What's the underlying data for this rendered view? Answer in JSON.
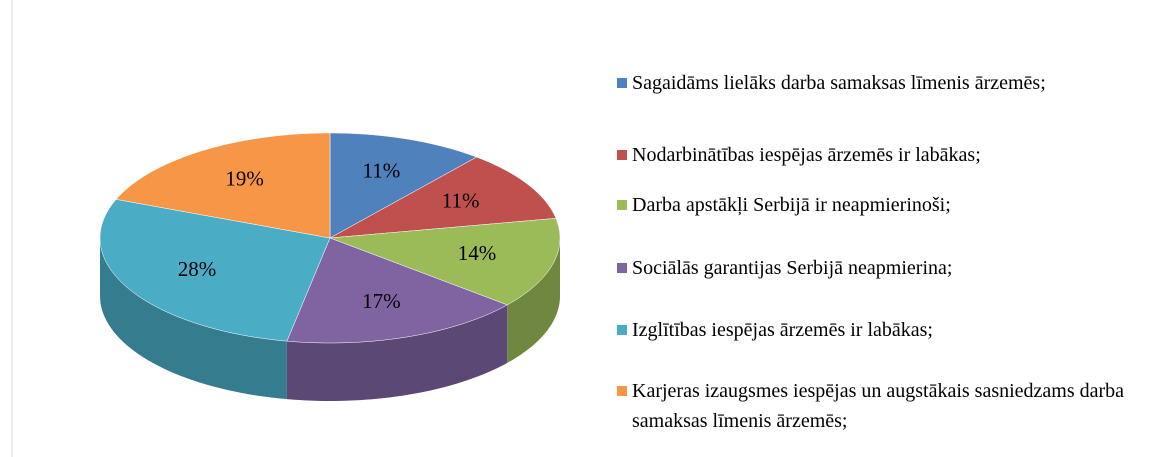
{
  "chart_data": {
    "type": "pie",
    "categories": [
      "Sagaidāms lielāks darba samaksas līmenis ārzemēs;",
      "Nodarbinātības iespējas ārzemēs ir labākas;",
      "Darba apstākļi Serbijā ir neapmierinoši;",
      "Sociālās garantijas Serbijā neapmierina;",
      "Izglītības iespējas ārzemēs ir labākas;",
      "Karjeras izaugsmes iespējas un augstākais sasniedzams darba samaksas līmenis ārzemēs;"
    ],
    "values": [
      11,
      11,
      14,
      17,
      28,
      19
    ],
    "value_labels": [
      "11%",
      "11%",
      "14%",
      "17%",
      "28%",
      "19%"
    ],
    "colors": [
      "#4f81bd",
      "#c0504d",
      "#9bbb59",
      "#8064a2",
      "#4bacc6",
      "#f79646"
    ],
    "legend": "right"
  }
}
